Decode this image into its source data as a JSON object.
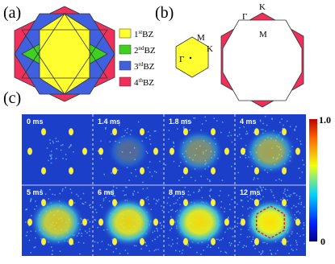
{
  "panel_labels": [
    "(a)",
    "(b)",
    "(c)"
  ],
  "legend": [
    {
      "number": "1",
      "suffix": "st",
      "zone": "BZ"
    },
    {
      "number": "2",
      "suffix": "nd",
      "zone": "BZ"
    },
    {
      "number": "3",
      "suffix": "rd",
      "zone": "BZ"
    },
    {
      "number": "4",
      "suffix": "th",
      "zone": "BZ"
    }
  ],
  "points_small": [
    "M",
    "K",
    "Γ"
  ],
  "points_large": [
    "Γ",
    "K",
    "M"
  ],
  "frames": [
    "0 ms",
    "1.4 ms",
    "1.8 ms",
    "4 ms",
    "5 ms",
    "6 ms",
    "8 ms",
    "12 ms"
  ],
  "colorbar": {
    "max": "1.0",
    "min": "0"
  }
}
